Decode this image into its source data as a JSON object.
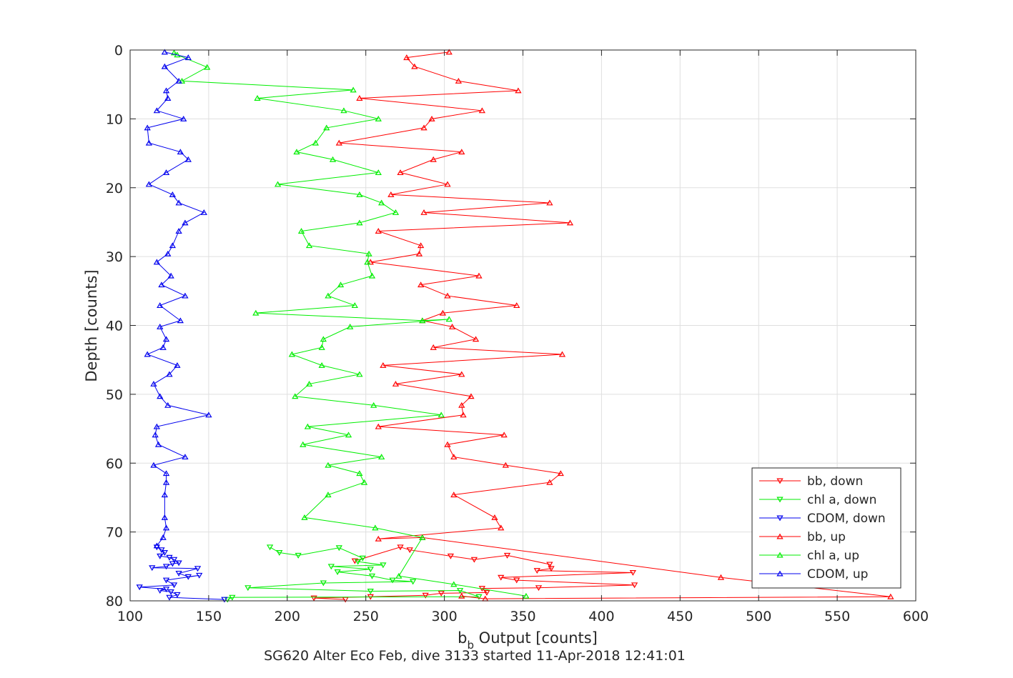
{
  "chart_data": {
    "type": "line",
    "xlabel": {
      "main": "b",
      "subscript": "b",
      "rest": " Output [counts]"
    },
    "ylabel": "Depth [counts]",
    "caption": "SG620 Alter Eco Feb, dive 3133 started 11-Apr-2018 12:41:01",
    "xlim": [
      100,
      600
    ],
    "ylim": [
      0,
      80
    ],
    "y_reversed": true,
    "grid": true,
    "x_ticks": [
      "100",
      "150",
      "200",
      "250",
      "300",
      "350",
      "400",
      "450",
      "500",
      "550",
      "600"
    ],
    "y_ticks": [
      "0",
      "10",
      "20",
      "30",
      "40",
      "50",
      "60",
      "70",
      "80"
    ],
    "legend_position": "bottom-right",
    "series": [
      {
        "name": "bb, down",
        "color": "#ff0000",
        "marker": "triangle-down",
        "points": [
          [
            243,
            74.2
          ],
          [
            272,
            72.2
          ],
          [
            278,
            72.6
          ],
          [
            304,
            73.5
          ],
          [
            319,
            74.0
          ],
          [
            340,
            73.4
          ],
          [
            367,
            74.7
          ],
          [
            368,
            75.3
          ],
          [
            359,
            75.6
          ],
          [
            420,
            75.9
          ],
          [
            336,
            76.6
          ],
          [
            346,
            77.0
          ],
          [
            421,
            77.7
          ],
          [
            360,
            78.1
          ],
          [
            324,
            78.2
          ],
          [
            327,
            78.8
          ],
          [
            298,
            78.9
          ],
          [
            288,
            79.2
          ],
          [
            253,
            79.4
          ],
          [
            217,
            79.6
          ],
          [
            237,
            79.8
          ]
        ]
      },
      {
        "name": "chl a, down",
        "color": "#00ee00",
        "marker": "triangle-down",
        "points": [
          [
            189,
            72.2
          ],
          [
            195,
            73.0
          ],
          [
            207,
            73.4
          ],
          [
            233,
            72.3
          ],
          [
            248,
            73.8
          ],
          [
            245,
            74.3
          ],
          [
            261,
            74.8
          ],
          [
            228,
            75.0
          ],
          [
            253,
            75.4
          ],
          [
            232,
            75.8
          ],
          [
            254,
            76.4
          ],
          [
            267,
            77.0
          ],
          [
            280,
            77.2
          ],
          [
            223,
            77.4
          ],
          [
            175,
            78.1
          ],
          [
            253,
            78.6
          ],
          [
            310,
            78.5
          ],
          [
            322,
            79.4
          ],
          [
            165,
            79.5
          ],
          [
            162,
            79.8
          ]
        ]
      },
      {
        "name": "CDOM, down",
        "color": "#0000ee",
        "marker": "triangle-down",
        "points": [
          [
            117,
            72.2
          ],
          [
            120,
            72.6
          ],
          [
            122,
            73.0
          ],
          [
            119,
            73.5
          ],
          [
            125,
            73.7
          ],
          [
            128,
            74.0
          ],
          [
            131,
            74.5
          ],
          [
            127,
            74.6
          ],
          [
            123,
            75.0
          ],
          [
            114,
            75.2
          ],
          [
            143,
            75.3
          ],
          [
            131,
            76.0
          ],
          [
            137,
            76.5
          ],
          [
            144,
            76.3
          ],
          [
            123,
            77.0
          ],
          [
            128,
            77.7
          ],
          [
            106,
            78.0
          ],
          [
            123,
            78.3
          ],
          [
            119,
            78.5
          ],
          [
            126,
            78.7
          ],
          [
            130,
            79.1
          ],
          [
            125,
            79.5
          ],
          [
            160,
            79.8
          ]
        ]
      },
      {
        "name": "bb, up",
        "color": "#ff0000",
        "marker": "triangle-up",
        "points": [
          [
            303,
            0.3
          ],
          [
            276,
            1.1
          ],
          [
            281,
            2.4
          ],
          [
            309,
            4.5
          ],
          [
            347,
            5.9
          ],
          [
            246,
            7.0
          ],
          [
            324,
            8.8
          ],
          [
            292,
            10.0
          ],
          [
            287,
            11.3
          ],
          [
            233,
            13.5
          ],
          [
            311,
            14.8
          ],
          [
            293,
            15.9
          ],
          [
            272,
            17.8
          ],
          [
            302,
            19.5
          ],
          [
            266,
            21.0
          ],
          [
            367,
            22.2
          ],
          [
            287,
            23.6
          ],
          [
            380,
            25.1
          ],
          [
            258,
            26.3
          ],
          [
            285,
            28.4
          ],
          [
            284,
            29.6
          ],
          [
            253,
            30.8
          ],
          [
            322,
            32.8
          ],
          [
            285,
            34.1
          ],
          [
            302,
            35.7
          ],
          [
            346,
            37.1
          ],
          [
            299,
            38.2
          ],
          [
            286,
            39.3
          ],
          [
            305,
            40.2
          ],
          [
            320,
            42.0
          ],
          [
            293,
            43.2
          ],
          [
            375,
            44.2
          ],
          [
            261,
            45.8
          ],
          [
            311,
            47.1
          ],
          [
            269,
            48.5
          ],
          [
            317,
            50.3
          ],
          [
            311,
            51.6
          ],
          [
            312,
            53.0
          ],
          [
            258,
            54.7
          ],
          [
            338,
            55.9
          ],
          [
            302,
            57.3
          ],
          [
            306,
            59.1
          ],
          [
            339,
            60.3
          ],
          [
            374,
            61.5
          ],
          [
            367,
            62.8
          ],
          [
            306,
            64.6
          ],
          [
            332,
            67.9
          ],
          [
            336,
            69.4
          ],
          [
            258,
            71.0
          ],
          [
            286,
            70.8
          ],
          [
            476,
            76.6
          ],
          [
            584,
            79.4
          ],
          [
            326,
            79.7
          ],
          [
            311,
            79.3
          ]
        ]
      },
      {
        "name": "chl a, up",
        "color": "#00ee00",
        "marker": "triangle-up",
        "points": [
          [
            128,
            0.4
          ],
          [
            130,
            0.7
          ],
          [
            149,
            2.5
          ],
          [
            133,
            4.5
          ],
          [
            242,
            5.8
          ],
          [
            181,
            7.0
          ],
          [
            236,
            8.8
          ],
          [
            258,
            10.0
          ],
          [
            225,
            11.3
          ],
          [
            218,
            13.5
          ],
          [
            206,
            14.8
          ],
          [
            229,
            15.9
          ],
          [
            258,
            17.8
          ],
          [
            194,
            19.5
          ],
          [
            246,
            21.0
          ],
          [
            260,
            22.2
          ],
          [
            269,
            23.6
          ],
          [
            246,
            25.1
          ],
          [
            209,
            26.3
          ],
          [
            214,
            28.4
          ],
          [
            252,
            29.6
          ],
          [
            251,
            30.8
          ],
          [
            254,
            32.8
          ],
          [
            234,
            34.1
          ],
          [
            226,
            35.7
          ],
          [
            243,
            37.1
          ],
          [
            180,
            38.2
          ],
          [
            286,
            39.3
          ],
          [
            303,
            39.1
          ],
          [
            240,
            40.2
          ],
          [
            223,
            42.0
          ],
          [
            222,
            43.2
          ],
          [
            203,
            44.2
          ],
          [
            222,
            45.8
          ],
          [
            246,
            47.1
          ],
          [
            214,
            48.5
          ],
          [
            205,
            50.3
          ],
          [
            255,
            51.6
          ],
          [
            298,
            53.0
          ],
          [
            213,
            54.7
          ],
          [
            239,
            55.9
          ],
          [
            210,
            57.3
          ],
          [
            260,
            59.1
          ],
          [
            226,
            60.3
          ],
          [
            246,
            61.5
          ],
          [
            249,
            62.8
          ],
          [
            226,
            64.6
          ],
          [
            211,
            67.9
          ],
          [
            256,
            69.4
          ],
          [
            286,
            70.8
          ],
          [
            271,
            76.4
          ],
          [
            306,
            77.6
          ],
          [
            352,
            79.3
          ]
        ]
      },
      {
        "name": "CDOM, up",
        "color": "#0000ee",
        "marker": "triangle-up",
        "points": [
          [
            122,
            0.3
          ],
          [
            137,
            1.1
          ],
          [
            122,
            2.4
          ],
          [
            131,
            4.5
          ],
          [
            123,
            5.9
          ],
          [
            124,
            7.0
          ],
          [
            117,
            8.8
          ],
          [
            134,
            10.0
          ],
          [
            111,
            11.3
          ],
          [
            112,
            13.5
          ],
          [
            132,
            14.8
          ],
          [
            137,
            15.9
          ],
          [
            123,
            17.8
          ],
          [
            112,
            19.5
          ],
          [
            127,
            21.0
          ],
          [
            131,
            22.2
          ],
          [
            147,
            23.6
          ],
          [
            135,
            25.1
          ],
          [
            131,
            26.3
          ],
          [
            127,
            28.4
          ],
          [
            124,
            29.6
          ],
          [
            117,
            30.8
          ],
          [
            126,
            32.8
          ],
          [
            120,
            34.1
          ],
          [
            135,
            35.7
          ],
          [
            119,
            37.1
          ],
          [
            132,
            39.3
          ],
          [
            119,
            40.2
          ],
          [
            123,
            42.0
          ],
          [
            121,
            43.2
          ],
          [
            111,
            44.2
          ],
          [
            130,
            45.8
          ],
          [
            125,
            47.1
          ],
          [
            115,
            48.5
          ],
          [
            119,
            50.3
          ],
          [
            124,
            51.6
          ],
          [
            150,
            53.0
          ],
          [
            117,
            54.7
          ],
          [
            116,
            55.9
          ],
          [
            118,
            57.3
          ],
          [
            135,
            59.1
          ],
          [
            115,
            60.3
          ],
          [
            123,
            61.5
          ],
          [
            123,
            62.8
          ],
          [
            122,
            64.6
          ],
          [
            122,
            67.9
          ],
          [
            123,
            69.4
          ],
          [
            121,
            70.8
          ],
          [
            117,
            72.0
          ]
        ]
      }
    ]
  }
}
